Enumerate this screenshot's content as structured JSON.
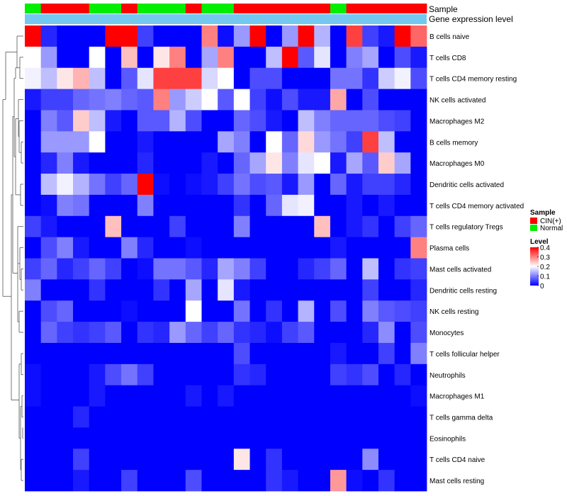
{
  "chart_data": {
    "type": "heatmap",
    "title": "",
    "annotation_tracks": [
      "Sample",
      "Gene expression level"
    ],
    "columns": 25,
    "sample": [
      "Normal",
      "CIN(+)",
      "CIN(+)",
      "CIN(+)",
      "Normal",
      "Normal",
      "CIN(+)",
      "Normal",
      "Normal",
      "Normal",
      "CIN(+)",
      "Normal",
      "Normal",
      "CIN(+)",
      "CIN(+)",
      "CIN(+)",
      "CIN(+)",
      "CIN(+)",
      "CIN(+)",
      "Normal",
      "CIN(+)",
      "CIN(+)",
      "CIN(+)",
      "CIN(+)",
      "CIN(+)"
    ],
    "sample_colors": {
      "CIN(+)": "#ff0000",
      "Normal": "#00ee00"
    },
    "expression_color": "#74c8f0",
    "rows": [
      {
        "name": "B cells naive",
        "values": [
          0.4,
          0.03,
          0,
          0,
          0,
          0.4,
          0.4,
          0.05,
          0,
          0,
          0,
          0.3,
          0.01,
          0.12,
          0.4,
          0,
          0.12,
          0.4,
          0.14,
          0,
          0.35,
          0.05,
          0.02,
          0.4,
          0.32
        ]
      },
      {
        "name": "T cells CD8",
        "values": [
          0.2,
          0.12,
          0,
          0,
          0.2,
          0,
          0.25,
          0,
          0.22,
          0.3,
          0,
          0.13,
          0.3,
          0,
          0,
          0.15,
          0.4,
          0.07,
          0.18,
          0,
          0.1,
          0.13,
          0,
          0.06,
          0.02
        ]
      },
      {
        "name": "T cells CD4 memory resting",
        "values": [
          0.19,
          0.15,
          0.22,
          0.26,
          0.15,
          0,
          0.07,
          0.18,
          0.35,
          0.35,
          0.35,
          0.17,
          0.2,
          0,
          0.06,
          0.06,
          0,
          0,
          0,
          0.09,
          0.09,
          0.04,
          0.16,
          0.19,
          0.06
        ]
      },
      {
        "name": "NK cells activated",
        "values": [
          0.02,
          0.05,
          0.05,
          0.08,
          0.09,
          0.1,
          0.08,
          0.07,
          0.3,
          0.12,
          0.16,
          0.2,
          0.07,
          0.2,
          0.05,
          0.01,
          0.06,
          0.02,
          0.02,
          0.27,
          0,
          0.06,
          0,
          0,
          0
        ]
      },
      {
        "name": "Macrophages M2",
        "values": [
          0,
          0.1,
          0.07,
          0.24,
          0.15,
          0.02,
          0,
          0.07,
          0.07,
          0.14,
          0.06,
          0,
          0,
          0.08,
          0.06,
          0.02,
          0,
          0.15,
          0.1,
          0.08,
          0.08,
          0.08,
          0.06,
          0.05,
          0
        ]
      },
      {
        "name": "B cells memory",
        "values": [
          0,
          0.12,
          0.12,
          0.12,
          0.2,
          0,
          0,
          0.02,
          0,
          0,
          0,
          0,
          0.13,
          0.1,
          0,
          0.2,
          0.08,
          0.23,
          0.12,
          0.09,
          0.05,
          0.35,
          0.15,
          0,
          0
        ]
      },
      {
        "name": "Macrophages M0",
        "values": [
          0,
          0.03,
          0.1,
          0.02,
          0,
          0,
          0,
          0.03,
          0,
          0,
          0,
          0.02,
          0,
          0.08,
          0.13,
          0.22,
          0.1,
          0.18,
          0.2,
          0.02,
          0.13,
          0.07,
          0.24,
          0.13,
          0
        ]
      },
      {
        "name": "Dendritic cells activated",
        "values": [
          0,
          0.15,
          0.19,
          0.14,
          0.09,
          0.05,
          0.08,
          0.4,
          0.01,
          0,
          0.01,
          0.02,
          0.05,
          0.09,
          0.06,
          0.07,
          0.02,
          0.12,
          0,
          0.08,
          0.02,
          0.05,
          0.05,
          0.03,
          0
        ]
      },
      {
        "name": "T cells CD4 memory activated",
        "values": [
          0,
          0.01,
          0.1,
          0.09,
          0,
          0,
          0,
          0.1,
          0,
          0,
          0,
          0,
          0,
          0.04,
          0,
          0.08,
          0.18,
          0.19,
          0,
          0,
          0.02,
          0,
          0.02,
          0,
          0
        ]
      },
      {
        "name": "T cells regulatory  Tregs",
        "values": [
          0.05,
          0.02,
          0,
          0,
          0,
          0.25,
          0,
          0,
          0,
          0.05,
          0,
          0,
          0,
          0.1,
          0,
          0,
          0,
          0,
          0.25,
          0,
          0.02,
          0.04,
          0,
          0.05,
          0.08
        ]
      },
      {
        "name": "Plasma cells",
        "values": [
          0,
          0.06,
          0.1,
          0.02,
          0,
          0,
          0.1,
          0.03,
          0,
          0,
          0.01,
          0,
          0,
          0,
          0,
          0,
          0,
          0,
          0,
          0.02,
          0,
          0,
          0,
          0,
          0.3
        ]
      },
      {
        "name": "Mast cells activated",
        "values": [
          0.05,
          0.08,
          0.03,
          0.05,
          0.08,
          0.05,
          0,
          0.01,
          0.09,
          0.09,
          0.07,
          0.03,
          0.13,
          0.1,
          0.05,
          0,
          0,
          0.03,
          0.05,
          0.08,
          0,
          0.15,
          0,
          0.04,
          0.05
        ]
      },
      {
        "name": "Dendritic cells resting",
        "values": [
          0.1,
          0,
          0,
          0,
          0.04,
          0,
          0,
          0,
          0.04,
          0,
          0.13,
          0,
          0.18,
          0.02,
          0,
          0,
          0,
          0,
          0,
          0,
          0,
          0.05,
          0,
          0,
          0.03
        ]
      },
      {
        "name": "NK cells resting",
        "values": [
          0,
          0.06,
          0.08,
          0,
          0,
          0,
          0.01,
          0,
          0,
          0,
          0.2,
          0,
          0,
          0.09,
          0,
          0.04,
          0,
          0.14,
          0,
          0.06,
          0,
          0.1,
          0.07,
          0.06,
          0.05
        ]
      },
      {
        "name": "Monocytes",
        "values": [
          0,
          0.08,
          0.05,
          0.04,
          0.05,
          0.07,
          0,
          0.04,
          0.03,
          0.12,
          0.08,
          0.05,
          0.08,
          0.04,
          0.03,
          0.01,
          0.05,
          0.07,
          0,
          0,
          0,
          0.03,
          0.11,
          0,
          0.06
        ]
      },
      {
        "name": "T cells follicular helper",
        "values": [
          0,
          0,
          0,
          0,
          0,
          0,
          0,
          0,
          0,
          0,
          0,
          0,
          0,
          0.06,
          0,
          0,
          0,
          0,
          0,
          0.02,
          0,
          0,
          0.05,
          0,
          0.1
        ]
      },
      {
        "name": "Neutrophils",
        "values": [
          0.01,
          0,
          0,
          0,
          0.02,
          0.06,
          0.09,
          0.05,
          0,
          0,
          0,
          0,
          0,
          0.04,
          0.03,
          0,
          0,
          0,
          0,
          0.05,
          0.04,
          0.06,
          0,
          0.03,
          0
        ]
      },
      {
        "name": "Macrophages M1",
        "values": [
          0.01,
          0,
          0,
          0,
          0.02,
          0,
          0,
          0,
          0,
          0,
          0.02,
          0,
          0.02,
          0,
          0,
          0,
          0,
          0,
          0,
          0,
          0,
          0,
          0,
          0,
          0.01
        ]
      },
      {
        "name": "T cells gamma delta",
        "values": [
          0,
          0,
          0,
          0.03,
          0,
          0,
          0,
          0,
          0,
          0,
          0,
          0,
          0,
          0,
          0,
          0,
          0,
          0,
          0,
          0,
          0,
          0,
          0,
          0,
          0
        ]
      },
      {
        "name": "Eosinophils",
        "values": [
          0,
          0,
          0,
          0,
          0,
          0,
          0,
          0,
          0,
          0,
          0,
          0,
          0,
          0,
          0,
          0,
          0,
          0,
          0,
          0,
          0,
          0,
          0,
          0,
          0
        ]
      },
      {
        "name": "T cells CD4 naive",
        "values": [
          0,
          0,
          0,
          0.05,
          0,
          0,
          0,
          0,
          0,
          0,
          0,
          0,
          0,
          0.22,
          0,
          0.04,
          0,
          0,
          0,
          0,
          0,
          0.11,
          0,
          0,
          0
        ]
      },
      {
        "name": "Mast cells resting",
        "values": [
          0,
          0,
          0,
          0.02,
          0,
          0,
          0.05,
          0,
          0,
          0,
          0.06,
          0,
          0,
          0,
          0,
          0.04,
          0.02,
          0,
          0,
          0.28,
          0.01,
          0,
          0.04,
          0,
          0
        ]
      }
    ],
    "legend": {
      "sample_title": "Sample",
      "sample_entries": [
        {
          "label": "CIN(+)",
          "color": "#ff0000"
        },
        {
          "label": "Normal",
          "color": "#00ee00"
        }
      ],
      "level_title": "Level",
      "level_ticks": [
        {
          "label": "0.4",
          "value": 0.4
        },
        {
          "label": "0.3",
          "value": 0.3
        },
        {
          "label": "0.2",
          "value": 0.2
        },
        {
          "label": "0.1",
          "value": 0.1
        },
        {
          "label": "0",
          "value": 0
        }
      ],
      "level_range": [
        0,
        0.4
      ]
    },
    "colorscale": {
      "low": "#0000ff",
      "mid": "#ffffff",
      "high": "#ff0000",
      "mid_value": 0.2
    }
  }
}
